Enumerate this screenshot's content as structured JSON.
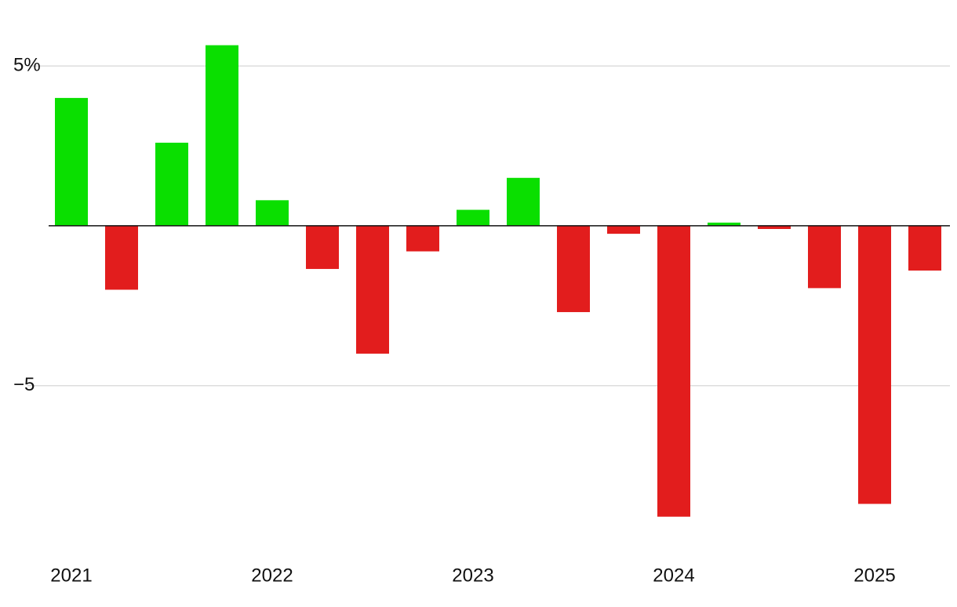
{
  "chart_data": {
    "type": "bar",
    "categories": [
      "2021",
      null,
      null,
      null,
      "2022",
      null,
      null,
      null,
      "2023",
      null,
      null,
      null,
      "2024",
      null,
      null,
      null,
      "2025",
      null
    ],
    "values": [
      4.0,
      -2.0,
      2.6,
      5.65,
      0.8,
      -1.35,
      -4.0,
      -0.8,
      0.5,
      1.5,
      -2.7,
      -0.25,
      -9.1,
      0.1,
      -0.1,
      -1.95,
      -8.7,
      -1.4
    ],
    "positive_color": "#0adf00",
    "negative_color": "#e21d1d",
    "ylim": [
      -10,
      6.5
    ],
    "yticks": [
      {
        "value": 5,
        "label": "5%"
      },
      {
        "value": -5,
        "label": "−5"
      }
    ],
    "grid": true
  }
}
